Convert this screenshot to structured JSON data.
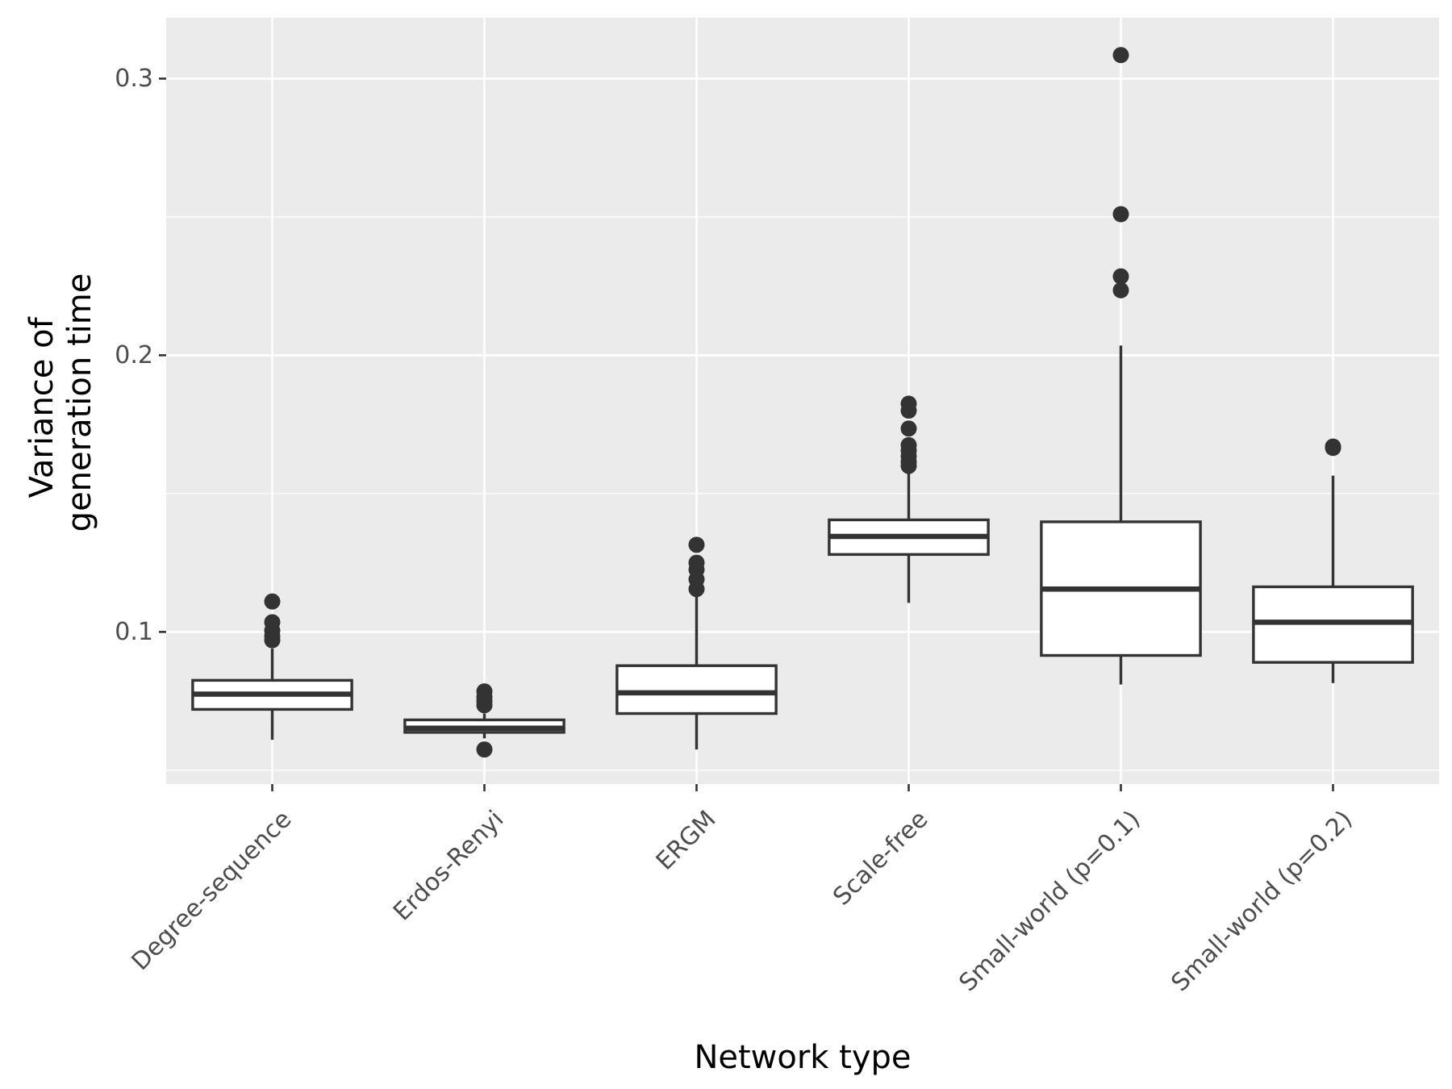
{
  "chart_data": {
    "type": "boxplot",
    "xlabel": "Network type",
    "ylabel": [
      "Variance of",
      "generation time"
    ],
    "ylim": [
      0.045,
      0.322
    ],
    "yticks": [
      "0.1",
      "0.2",
      "0.3"
    ],
    "ytick_values": [
      0.1,
      0.2,
      0.3
    ],
    "minor_yticks": [
      0.05,
      0.15,
      0.25
    ],
    "grid": true,
    "colors": {
      "panel": "#ebebeb",
      "grid": "#ffffff",
      "box_fill": "#ffffff",
      "box_line": "#333333",
      "outlier": "#333333"
    },
    "categories": [
      "Degree-sequence",
      "Erdos-Renyi",
      "ERGM",
      "Scale-free",
      "Small-world (p=0.1)",
      "Small-world (p=0.2)"
    ],
    "boxes": [
      {
        "category": "Degree-sequence",
        "whisker_low": 0.061,
        "q1": 0.072,
        "median": 0.0775,
        "q3": 0.0825,
        "whisker_high": 0.094,
        "outliers": [
          0.111,
          0.1035,
          0.1005,
          0.0985,
          0.097
        ]
      },
      {
        "category": "Erdos-Renyi",
        "whisker_low": 0.0615,
        "q1": 0.0637,
        "median": 0.0652,
        "q3": 0.0682,
        "whisker_high": 0.0705,
        "outliers": [
          0.0785,
          0.0765,
          0.075,
          0.0735,
          0.0575
        ]
      },
      {
        "category": "ERGM",
        "whisker_low": 0.0575,
        "q1": 0.0705,
        "median": 0.078,
        "q3": 0.0878,
        "whisker_high": 0.1135,
        "outliers": [
          0.1315,
          0.125,
          0.1225,
          0.119,
          0.1155
        ]
      },
      {
        "category": "Scale-free",
        "whisker_low": 0.1105,
        "q1": 0.128,
        "median": 0.1345,
        "q3": 0.1405,
        "whisker_high": 0.159,
        "outliers": [
          0.1825,
          0.18,
          0.1735,
          0.1675,
          0.1655,
          0.1635,
          0.1615,
          0.16
        ]
      },
      {
        "category": "Small-world (p=0.1)",
        "whisker_low": 0.081,
        "q1": 0.0915,
        "median": 0.1155,
        "q3": 0.1398,
        "whisker_high": 0.2035,
        "outliers": [
          0.3085,
          0.251,
          0.2285,
          0.2235
        ]
      },
      {
        "category": "Small-world (p=0.2)",
        "whisker_low": 0.0815,
        "q1": 0.089,
        "median": 0.1035,
        "q3": 0.1163,
        "whisker_high": 0.1565,
        "outliers": [
          0.167,
          0.1665
        ]
      }
    ]
  }
}
